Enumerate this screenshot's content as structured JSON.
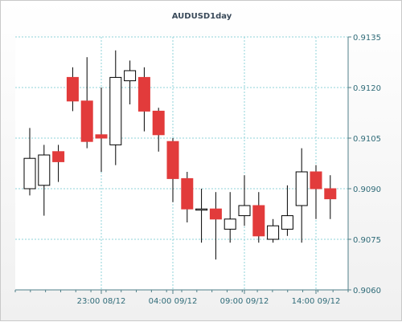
{
  "chart_data": {
    "type": "candlestick",
    "title": "AUDUSD1day",
    "ylim": [
      0.906,
      0.9135
    ],
    "yticks": [
      "0.9060",
      "0.9075",
      "0.9090",
      "0.9105",
      "0.9120",
      "0.9135"
    ],
    "xticks": [
      {
        "label": "23:00 08/12",
        "index": 5
      },
      {
        "label": "04:00 09/12",
        "index": 10
      },
      {
        "label": "09:00 09/12",
        "index": 15
      },
      {
        "label": "14:00 09/12",
        "index": 20
      }
    ],
    "grid": true,
    "colors": {
      "up_fill": "#ffffff",
      "down_fill": "#e23b3b",
      "wick": "#000000",
      "grid": "#8fd3d8",
      "axis": "#4f7f88"
    },
    "candles": [
      {
        "open": 0.909,
        "high": 0.9108,
        "low": 0.9088,
        "close": 0.9099
      },
      {
        "open": 0.9091,
        "high": 0.9103,
        "low": 0.9082,
        "close": 0.91
      },
      {
        "open": 0.9101,
        "high": 0.9103,
        "low": 0.9092,
        "close": 0.9098
      },
      {
        "open": 0.9123,
        "high": 0.9126,
        "low": 0.9113,
        "close": 0.9116
      },
      {
        "open": 0.9116,
        "high": 0.9129,
        "low": 0.9102,
        "close": 0.9104
      },
      {
        "open": 0.9106,
        "high": 0.912,
        "low": 0.9095,
        "close": 0.9105
      },
      {
        "open": 0.9103,
        "high": 0.9131,
        "low": 0.9097,
        "close": 0.9123
      },
      {
        "open": 0.9122,
        "high": 0.9128,
        "low": 0.9115,
        "close": 0.9125
      },
      {
        "open": 0.9123,
        "high": 0.9126,
        "low": 0.9107,
        "close": 0.9113
      },
      {
        "open": 0.9113,
        "high": 0.9114,
        "low": 0.9101,
        "close": 0.9106
      },
      {
        "open": 0.9104,
        "high": 0.9105,
        "low": 0.9086,
        "close": 0.9093
      },
      {
        "open": 0.9093,
        "high": 0.9095,
        "low": 0.908,
        "close": 0.9084
      },
      {
        "open": 0.9084,
        "high": 0.909,
        "low": 0.9074,
        "close": 0.9084
      },
      {
        "open": 0.9084,
        "high": 0.9089,
        "low": 0.9069,
        "close": 0.9081
      },
      {
        "open": 0.9078,
        "high": 0.9089,
        "low": 0.9074,
        "close": 0.9081
      },
      {
        "open": 0.9082,
        "high": 0.9094,
        "low": 0.9079,
        "close": 0.9085
      },
      {
        "open": 0.9085,
        "high": 0.9089,
        "low": 0.9074,
        "close": 0.9076
      },
      {
        "open": 0.9075,
        "high": 0.9081,
        "low": 0.9074,
        "close": 0.9079
      },
      {
        "open": 0.9078,
        "high": 0.9091,
        "low": 0.9076,
        "close": 0.9082
      },
      {
        "open": 0.9085,
        "high": 0.9102,
        "low": 0.9074,
        "close": 0.9095
      },
      {
        "open": 0.9095,
        "high": 0.9097,
        "low": 0.9081,
        "close": 0.909
      },
      {
        "open": 0.909,
        "high": 0.9094,
        "low": 0.9081,
        "close": 0.9087
      }
    ]
  }
}
